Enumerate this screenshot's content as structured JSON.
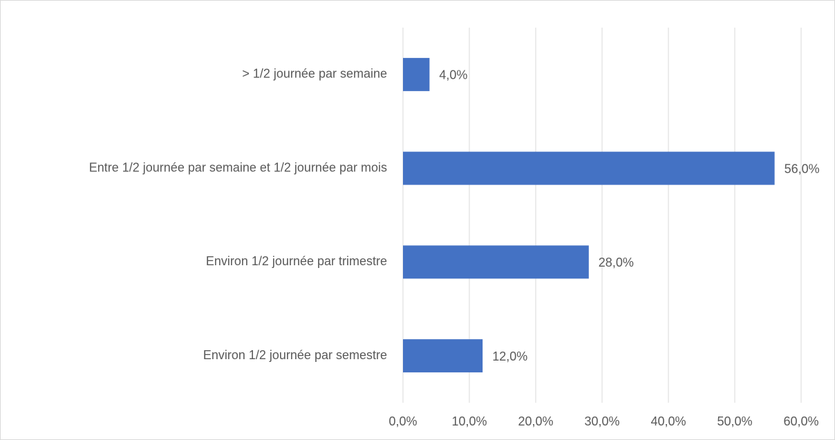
{
  "chart_data": {
    "type": "barh",
    "categories": [
      "> 1/2 journée par semaine",
      "Entre 1/2 journée par semaine et 1/2 journée par mois",
      "Environ 1/2 journée par trimestre",
      "Environ 1/2 journée par semestre"
    ],
    "values": [
      4,
      56,
      28,
      12
    ],
    "value_labels": [
      "4,0%",
      "56,0%",
      "28,0%",
      "12,0%"
    ],
    "color": "#4472c4",
    "xlim": [
      0,
      60
    ],
    "xticks": [
      {
        "value": 0,
        "label": "0,0%"
      },
      {
        "value": 10,
        "label": "10,0%"
      },
      {
        "value": 20,
        "label": "20,0%"
      },
      {
        "value": 30,
        "label": "30,0%"
      },
      {
        "value": 40,
        "label": "40,0%"
      },
      {
        "value": 50,
        "label": "50,0%"
      },
      {
        "value": 60,
        "label": "60,0%"
      }
    ],
    "grid": true
  }
}
